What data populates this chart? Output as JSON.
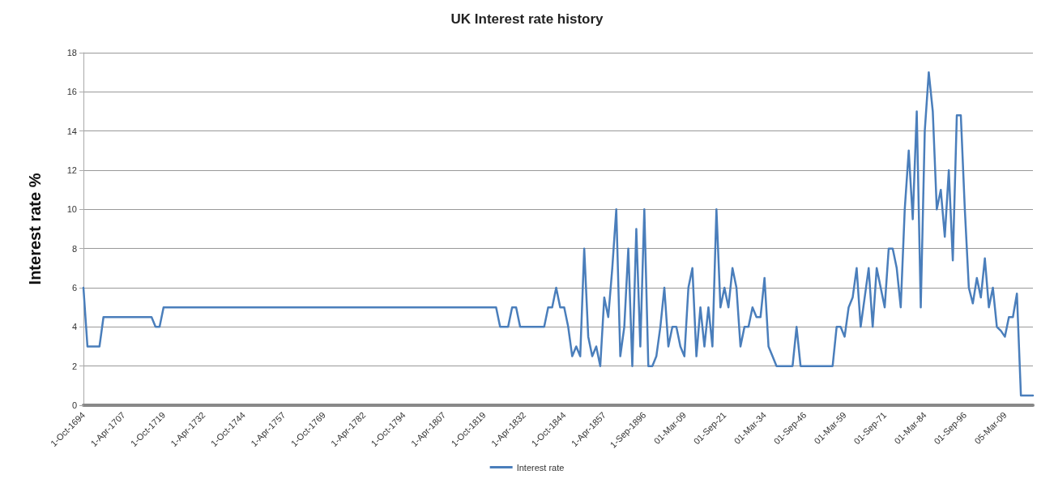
{
  "chart_data": {
    "type": "line",
    "title": "UK Interest rate history",
    "ylabel": "Interest rate %",
    "categories": [
      "1-Oct-1694",
      null,
      null,
      null,
      null,
      null,
      null,
      null,
      null,
      null,
      "1-Apr-1707",
      null,
      null,
      null,
      null,
      null,
      null,
      null,
      null,
      null,
      "1-Oct-1719",
      null,
      null,
      null,
      null,
      null,
      null,
      null,
      null,
      null,
      "1-Apr-1732",
      null,
      null,
      null,
      null,
      null,
      null,
      null,
      null,
      null,
      "1-Oct-1744",
      null,
      null,
      null,
      null,
      null,
      null,
      null,
      null,
      null,
      "1-Apr-1757",
      null,
      null,
      null,
      null,
      null,
      null,
      null,
      null,
      null,
      "1-Oct-1769",
      null,
      null,
      null,
      null,
      null,
      null,
      null,
      null,
      null,
      "1-Apr-1782",
      null,
      null,
      null,
      null,
      null,
      null,
      null,
      null,
      null,
      "1-Oct-1794",
      null,
      null,
      null,
      null,
      null,
      null,
      null,
      null,
      null,
      "1-Apr-1807",
      null,
      null,
      null,
      null,
      null,
      null,
      null,
      null,
      null,
      "1-Oct-1819",
      null,
      null,
      null,
      null,
      null,
      null,
      null,
      null,
      null,
      "1-Apr-1832",
      null,
      null,
      null,
      null,
      null,
      null,
      null,
      null,
      null,
      "1-Oct-1844",
      null,
      null,
      null,
      null,
      null,
      null,
      null,
      null,
      null,
      "1-Apr-1857",
      null,
      null,
      null,
      null,
      null,
      null,
      null,
      null,
      null,
      "1-Sep-1896",
      null,
      null,
      null,
      null,
      null,
      null,
      null,
      null,
      null,
      "01-Mar-09",
      null,
      null,
      null,
      null,
      null,
      null,
      null,
      null,
      null,
      "01-Sep-21",
      null,
      null,
      null,
      null,
      null,
      null,
      null,
      null,
      null,
      "01-Mar-34",
      null,
      null,
      null,
      null,
      null,
      null,
      null,
      null,
      null,
      "01-Sep-46",
      null,
      null,
      null,
      null,
      null,
      null,
      null,
      null,
      null,
      "01-Mar-59",
      null,
      null,
      null,
      null,
      null,
      null,
      null,
      null,
      null,
      "01-Sep-71",
      null,
      null,
      null,
      null,
      null,
      null,
      null,
      null,
      null,
      "01-Mar-84",
      null,
      null,
      null,
      null,
      null,
      null,
      null,
      null,
      null,
      "01-Sep-96",
      null,
      null,
      null,
      null,
      null,
      null,
      null,
      null,
      null,
      "05-Mar-09",
      null,
      null,
      null,
      null,
      null,
      null,
      null
    ],
    "series": [
      {
        "name": "Interest rate",
        "color": "#4a7ebb",
        "values": [
          6,
          3,
          3,
          3,
          3,
          4.5,
          4.5,
          4.5,
          4.5,
          4.5,
          4.5,
          4.5,
          4.5,
          4.5,
          4.5,
          4.5,
          4.5,
          4.5,
          4,
          4,
          5,
          5,
          5,
          5,
          5,
          5,
          5,
          5,
          5,
          5,
          5,
          5,
          5,
          5,
          5,
          5,
          5,
          5,
          5,
          5,
          5,
          5,
          5,
          5,
          5,
          5,
          5,
          5,
          5,
          5,
          5,
          5,
          5,
          5,
          5,
          5,
          5,
          5,
          5,
          5,
          5,
          5,
          5,
          5,
          5,
          5,
          5,
          5,
          5,
          5,
          5,
          5,
          5,
          5,
          5,
          5,
          5,
          5,
          5,
          5,
          5,
          5,
          5,
          5,
          5,
          5,
          5,
          5,
          5,
          5,
          5,
          5,
          5,
          5,
          5,
          5,
          5,
          5,
          5,
          5,
          5,
          5,
          5,
          5,
          4,
          4,
          4,
          5,
          5,
          4,
          4,
          4,
          4,
          4,
          4,
          4,
          5,
          5,
          6,
          5,
          5,
          4,
          2.5,
          3,
          2.5,
          8,
          3.5,
          2.5,
          3,
          2,
          5.5,
          4.5,
          7,
          10,
          2.5,
          4,
          8,
          2,
          9,
          3,
          10,
          2,
          2,
          2.5,
          4,
          6,
          3,
          4,
          4,
          3,
          2.5,
          6,
          7,
          2.5,
          5,
          3,
          5,
          3,
          10,
          5,
          6,
          5,
          7,
          6,
          3,
          4,
          4,
          5,
          4.5,
          4.5,
          6.5,
          3,
          2.5,
          2,
          2,
          2,
          2,
          2,
          4,
          2,
          2,
          2,
          2,
          2,
          2,
          2,
          2,
          2,
          4,
          4,
          3.5,
          5,
          5.5,
          7,
          4,
          5.5,
          7,
          4,
          7,
          6,
          5,
          8,
          8,
          7,
          5,
          10,
          13,
          9.5,
          15,
          5,
          14,
          17,
          15,
          10,
          11,
          8.6,
          12,
          7.4,
          14.8,
          14.8,
          10,
          6,
          5.2,
          6.5,
          5.5,
          7.5,
          5,
          6,
          4,
          3.8,
          3.5,
          4.5,
          4.5,
          5.7,
          0.5,
          0.5,
          0.5,
          0.5
        ]
      }
    ],
    "ylim": [
      0,
      18
    ],
    "yticks": [
      0,
      2,
      4,
      6,
      8,
      10,
      12,
      14,
      16,
      18
    ],
    "grid": "y",
    "legend": "bottom",
    "marker": "none",
    "line_style": "solid"
  }
}
